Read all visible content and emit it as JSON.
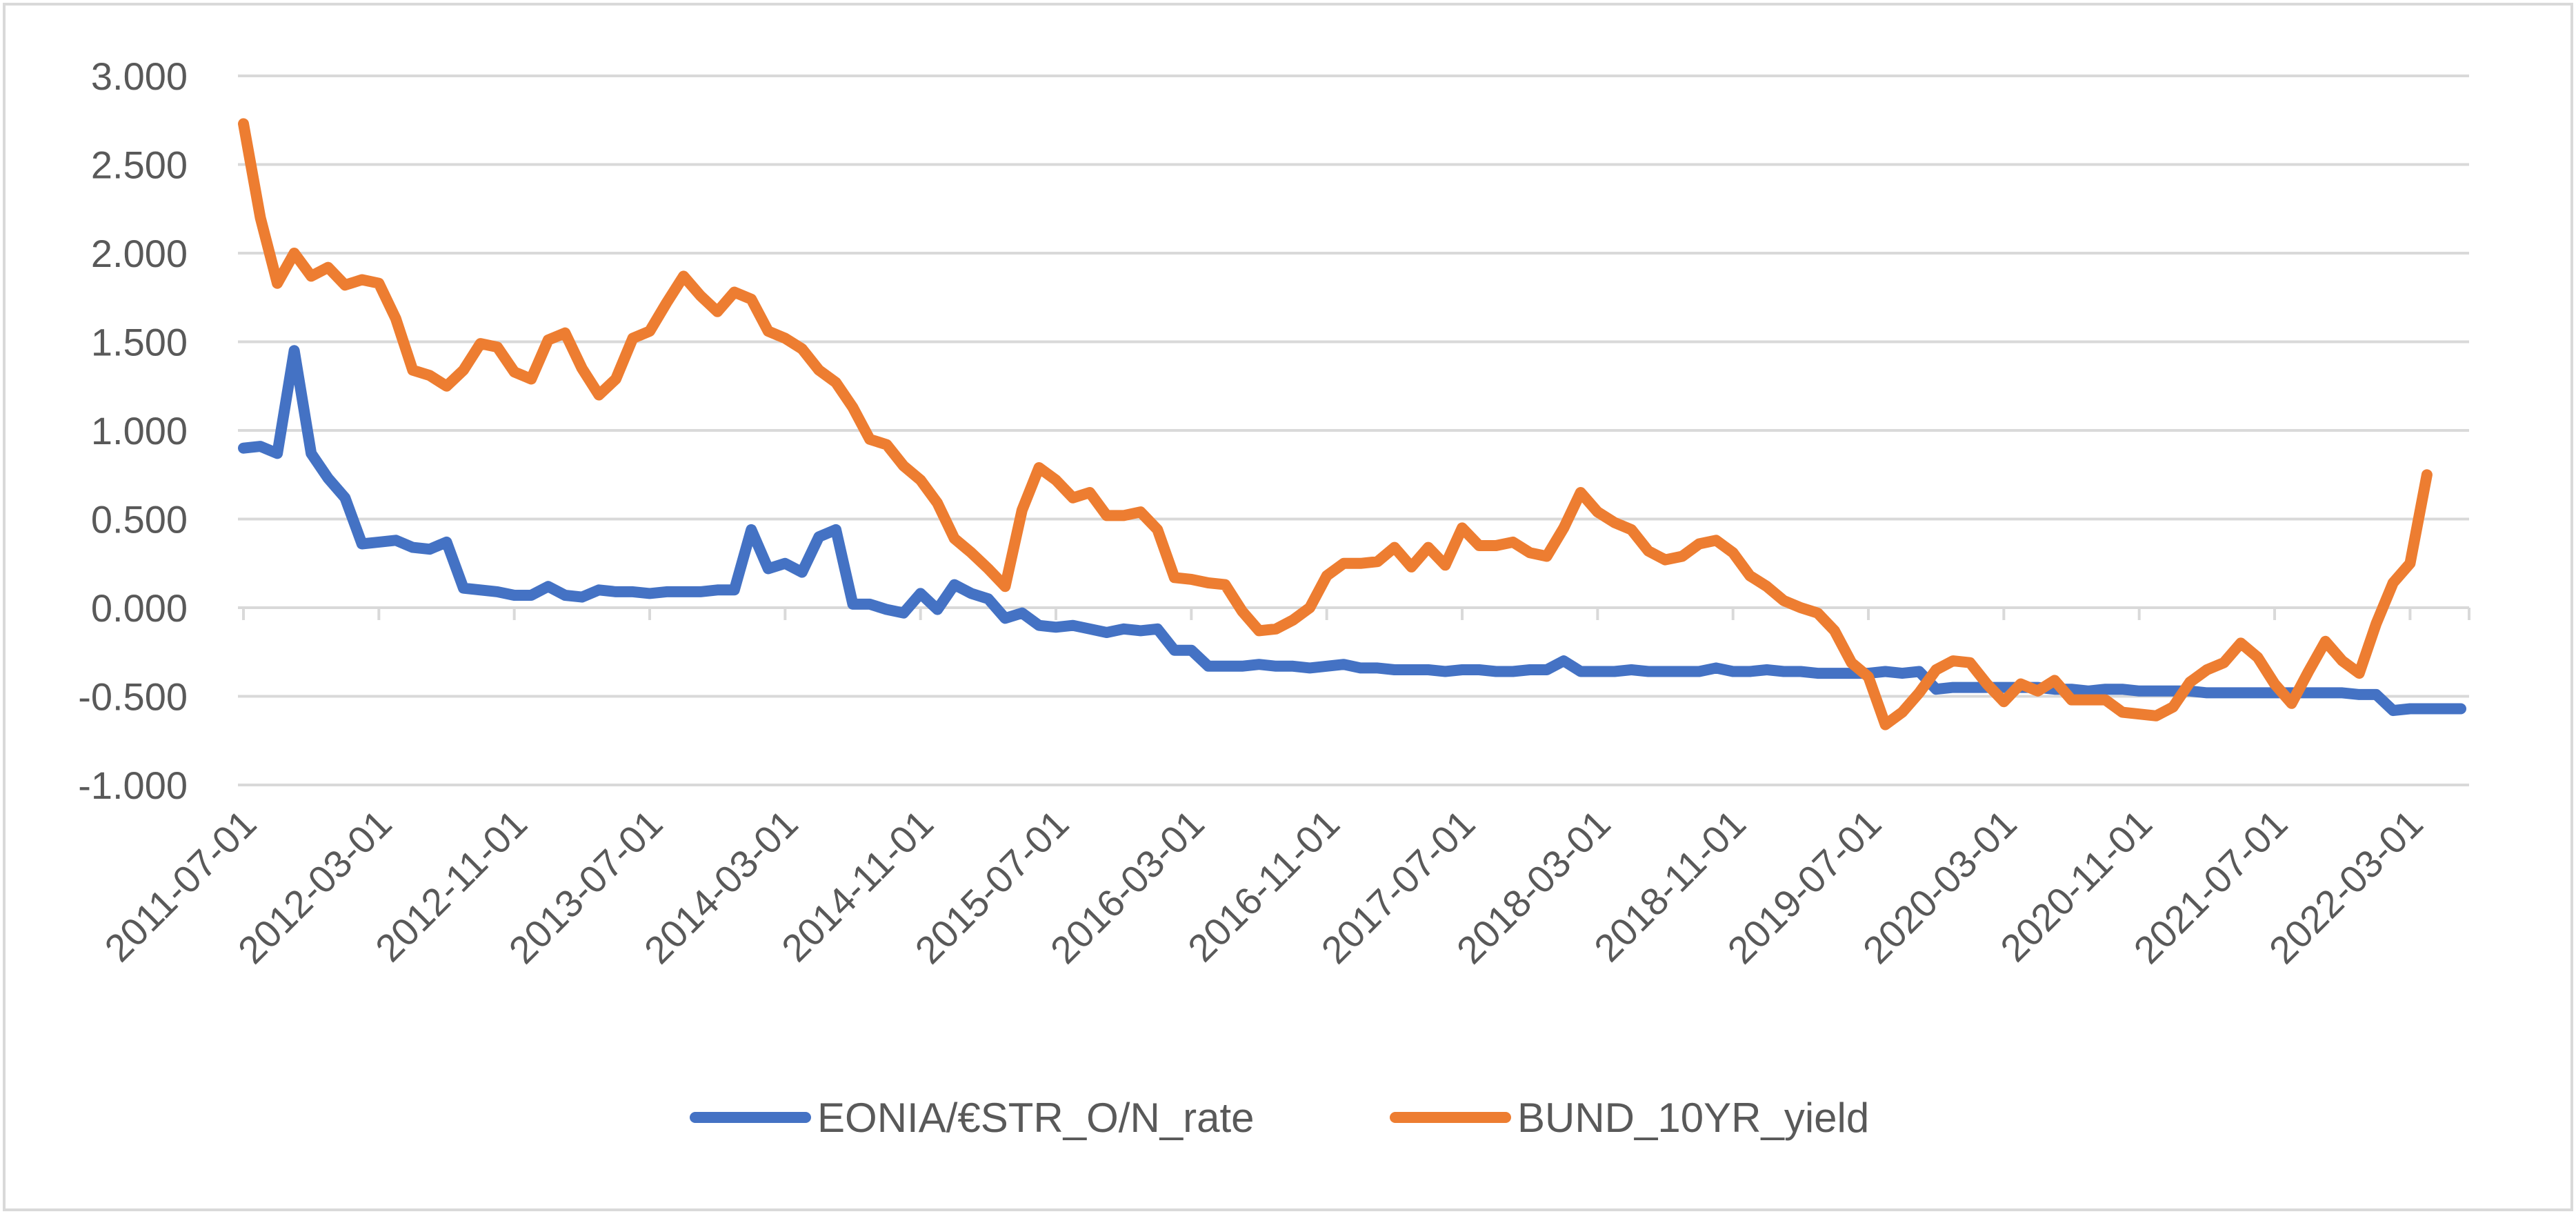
{
  "chart_data": {
    "type": "line",
    "title": "",
    "xlabel": "",
    "ylabel": "",
    "ylim": [
      -1.0,
      3.0
    ],
    "y_ticks": [
      "3.000",
      "2.500",
      "2.000",
      "1.500",
      "1.000",
      "0.500",
      "0.000",
      "-0.500",
      "-1.000"
    ],
    "y_tick_values": [
      3.0,
      2.5,
      2.0,
      1.5,
      1.0,
      0.5,
      0.0,
      -0.5,
      -1.0
    ],
    "x_start": "2011-07-01",
    "x_labels": [
      "2011-07-01",
      "2012-03-01",
      "2012-11-01",
      "2013-07-01",
      "2014-03-01",
      "2014-11-01",
      "2015-07-01",
      "2016-03-01",
      "2016-11-01",
      "2017-07-01",
      "2018-03-01",
      "2018-11-01",
      "2019-07-01",
      "2020-03-01",
      "2020-11-01",
      "2021-07-01",
      "2022-03-01"
    ],
    "x_label_month_index": [
      0,
      8,
      16,
      24,
      32,
      40,
      48,
      56,
      64,
      72,
      80,
      88,
      96,
      104,
      112,
      120,
      128
    ],
    "grid": true,
    "legend_position": "bottom",
    "series": [
      {
        "name": "EONIA/€STR_O/N_rate",
        "color": "#4472C4",
        "values": [
          0.9,
          0.91,
          0.87,
          1.45,
          0.87,
          0.73,
          0.62,
          0.36,
          0.37,
          0.38,
          0.34,
          0.33,
          0.37,
          0.11,
          0.1,
          0.09,
          0.07,
          0.07,
          0.12,
          0.07,
          0.06,
          0.1,
          0.09,
          0.09,
          0.08,
          0.09,
          0.09,
          0.09,
          0.1,
          0.1,
          0.44,
          0.22,
          0.25,
          0.2,
          0.4,
          0.44,
          0.02,
          0.02,
          -0.01,
          -0.03,
          0.08,
          -0.01,
          0.13,
          0.08,
          0.05,
          -0.06,
          -0.03,
          -0.1,
          -0.11,
          -0.1,
          -0.12,
          -0.14,
          -0.12,
          -0.13,
          -0.12,
          -0.24,
          -0.24,
          -0.33,
          -0.33,
          -0.33,
          -0.32,
          -0.33,
          -0.33,
          -0.34,
          -0.33,
          -0.32,
          -0.34,
          -0.34,
          -0.35,
          -0.35,
          -0.35,
          -0.36,
          -0.35,
          -0.35,
          -0.36,
          -0.36,
          -0.35,
          -0.35,
          -0.3,
          -0.36,
          -0.36,
          -0.36,
          -0.35,
          -0.36,
          -0.36,
          -0.36,
          -0.36,
          -0.34,
          -0.36,
          -0.36,
          -0.35,
          -0.36,
          -0.36,
          -0.37,
          -0.37,
          -0.37,
          -0.37,
          -0.36,
          -0.37,
          -0.36,
          -0.46,
          -0.45,
          -0.45,
          -0.45,
          -0.45,
          -0.45,
          -0.45,
          -0.46,
          -0.46,
          -0.47,
          -0.46,
          -0.46,
          -0.47,
          -0.47,
          -0.47,
          -0.47,
          -0.48,
          -0.48,
          -0.48,
          -0.48,
          -0.48,
          -0.48,
          -0.48,
          -0.48,
          -0.48,
          -0.49,
          -0.49,
          -0.58,
          -0.57,
          -0.57,
          -0.57,
          -0.57
        ]
      },
      {
        "name": "BUND_10YR_yield",
        "color": "#ED7D31",
        "values": [
          2.73,
          2.2,
          1.83,
          2.0,
          1.87,
          1.92,
          1.82,
          1.85,
          1.83,
          1.63,
          1.34,
          1.31,
          1.25,
          1.34,
          1.49,
          1.47,
          1.33,
          1.29,
          1.51,
          1.55,
          1.35,
          1.2,
          1.29,
          1.52,
          1.56,
          1.72,
          1.87,
          1.76,
          1.67,
          1.78,
          1.74,
          1.56,
          1.52,
          1.46,
          1.34,
          1.27,
          1.13,
          0.95,
          0.92,
          0.8,
          0.72,
          0.59,
          0.39,
          0.31,
          0.22,
          0.12,
          0.55,
          0.79,
          0.72,
          0.62,
          0.65,
          0.52,
          0.52,
          0.54,
          0.44,
          0.17,
          0.16,
          0.14,
          0.13,
          -0.02,
          -0.13,
          -0.12,
          -0.07,
          0.0,
          0.18,
          0.25,
          0.25,
          0.26,
          0.34,
          0.23,
          0.34,
          0.24,
          0.45,
          0.35,
          0.35,
          0.37,
          0.31,
          0.29,
          0.45,
          0.65,
          0.54,
          0.48,
          0.44,
          0.32,
          0.27,
          0.29,
          0.36,
          0.38,
          0.31,
          0.18,
          0.12,
          0.04,
          0.0,
          -0.03,
          -0.13,
          -0.31,
          -0.39,
          -0.66,
          -0.59,
          -0.48,
          -0.35,
          -0.3,
          -0.31,
          -0.43,
          -0.53,
          -0.43,
          -0.47,
          -0.41,
          -0.52,
          -0.52,
          -0.52,
          -0.59,
          -0.6,
          -0.61,
          -0.56,
          -0.42,
          -0.35,
          -0.31,
          -0.2,
          -0.28,
          -0.43,
          -0.54,
          -0.36,
          -0.19,
          -0.3,
          -0.37,
          -0.09,
          0.14,
          0.25,
          0.75
        ]
      }
    ]
  }
}
